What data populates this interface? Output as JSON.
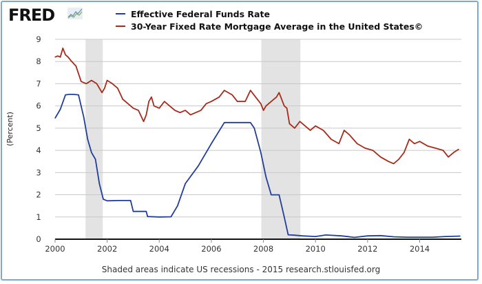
{
  "header": {
    "logo_text": "FRED",
    "logo_mark": "fred-chart-icon"
  },
  "chart_data": {
    "type": "line",
    "title": "",
    "xlabel": "",
    "ylabel": "(Percent)",
    "xlim": [
      2000,
      2015.6
    ],
    "ylim": [
      0,
      9
    ],
    "grid": true,
    "legend_position": "top",
    "x_ticks": [
      "2000",
      "2002",
      "2004",
      "2006",
      "2008",
      "2010",
      "2012",
      "2014"
    ],
    "x_tick_values": [
      2000,
      2002,
      2004,
      2006,
      2008,
      2010,
      2012,
      2014
    ],
    "y_ticks": [
      "0",
      "1",
      "2",
      "3",
      "4",
      "5",
      "6",
      "7",
      "8",
      "9"
    ],
    "y_tick_values": [
      0,
      1,
      2,
      3,
      4,
      5,
      6,
      7,
      8,
      9
    ],
    "recessions": [
      {
        "start": 2001.17,
        "end": 2001.83
      },
      {
        "start": 2007.92,
        "end": 2009.42
      }
    ],
    "series": [
      {
        "name": "Effective Federal Funds Rate",
        "color": "#1f3d99",
        "x": [
          2000,
          2000.2,
          2000.4,
          2000.55,
          2000.7,
          2000.9,
          2001.0,
          2001.1,
          2001.25,
          2001.4,
          2001.55,
          2001.7,
          2001.85,
          2002.0,
          2002.5,
          2002.9,
          2003.0,
          2003.5,
          2003.55,
          2004.0,
          2004.45,
          2004.7,
          2005.0,
          2005.5,
          2006.0,
          2006.5,
          2007.0,
          2007.5,
          2007.65,
          2007.9,
          2008.1,
          2008.3,
          2008.6,
          2008.8,
          2008.95,
          2009.2,
          2009.5,
          2010.0,
          2010.4,
          2011.0,
          2011.5,
          2012.0,
          2012.5,
          2013.0,
          2013.5,
          2014.0,
          2014.5,
          2015.0,
          2015.55
        ],
        "y": [
          5.45,
          5.85,
          6.5,
          6.52,
          6.52,
          6.5,
          6.0,
          5.5,
          4.5,
          3.9,
          3.6,
          2.5,
          1.8,
          1.73,
          1.74,
          1.74,
          1.25,
          1.25,
          1.02,
          1.0,
          1.01,
          1.5,
          2.5,
          3.3,
          4.3,
          5.25,
          5.25,
          5.25,
          5.0,
          3.9,
          2.8,
          2.0,
          2.0,
          1.0,
          0.2,
          0.18,
          0.15,
          0.12,
          0.19,
          0.15,
          0.08,
          0.15,
          0.16,
          0.11,
          0.09,
          0.09,
          0.09,
          0.12,
          0.14
        ]
      },
      {
        "name": "30-Year Fixed Rate Mortgage Average in the United States©",
        "color": "#a52a1a",
        "x": [
          2000,
          2000.1,
          2000.2,
          2000.3,
          2000.4,
          2000.5,
          2000.6,
          2000.8,
          2001.0,
          2001.2,
          2001.4,
          2001.6,
          2001.8,
          2001.9,
          2002.0,
          2002.2,
          2002.4,
          2002.6,
          2002.8,
          2003.0,
          2003.2,
          2003.4,
          2003.5,
          2003.6,
          2003.7,
          2003.8,
          2004.0,
          2004.2,
          2004.4,
          2004.6,
          2004.8,
          2005.0,
          2005.2,
          2005.4,
          2005.6,
          2005.8,
          2006.0,
          2006.3,
          2006.5,
          2006.8,
          2007.0,
          2007.3,
          2007.5,
          2007.7,
          2007.9,
          2008.0,
          2008.1,
          2008.3,
          2008.5,
          2008.6,
          2008.8,
          2008.9,
          2009.0,
          2009.2,
          2009.4,
          2009.6,
          2009.8,
          2010.0,
          2010.3,
          2010.6,
          2010.9,
          2011.1,
          2011.3,
          2011.6,
          2011.9,
          2012.2,
          2012.5,
          2012.8,
          2013.0,
          2013.2,
          2013.4,
          2013.6,
          2013.8,
          2014.0,
          2014.3,
          2014.6,
          2014.9,
          2015.1,
          2015.3,
          2015.5
        ],
        "y": [
          8.2,
          8.25,
          8.2,
          8.6,
          8.3,
          8.2,
          8.05,
          7.8,
          7.1,
          7.0,
          7.15,
          7.0,
          6.6,
          6.8,
          7.15,
          7.0,
          6.8,
          6.3,
          6.1,
          5.9,
          5.8,
          5.3,
          5.6,
          6.2,
          6.4,
          6.0,
          5.9,
          6.2,
          6.0,
          5.8,
          5.7,
          5.8,
          5.6,
          5.7,
          5.8,
          6.1,
          6.2,
          6.4,
          6.7,
          6.5,
          6.2,
          6.2,
          6.7,
          6.4,
          6.1,
          5.8,
          6.0,
          6.2,
          6.4,
          6.6,
          6.0,
          5.9,
          5.2,
          5.0,
          5.3,
          5.1,
          4.9,
          5.1,
          4.9,
          4.5,
          4.3,
          4.9,
          4.7,
          4.3,
          4.1,
          4.0,
          3.7,
          3.5,
          3.4,
          3.6,
          3.9,
          4.5,
          4.3,
          4.4,
          4.2,
          4.1,
          4.0,
          3.7,
          3.9,
          4.05
        ]
      }
    ]
  },
  "caption": "Shaded areas indicate US recessions - 2015 research.stlouisfed.org"
}
